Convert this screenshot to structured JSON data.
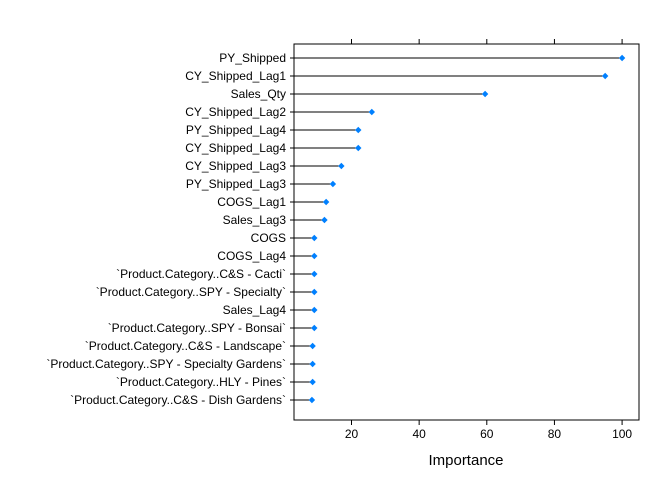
{
  "chart_data": {
    "type": "dotplot",
    "xlabel": "Importance",
    "xlim": [
      3,
      105
    ],
    "xticks": [
      20,
      40,
      60,
      80,
      100
    ],
    "grid": false,
    "marker_color": "#0080ff",
    "categories": [
      "PY_Shipped",
      "CY_Shipped_Lag1",
      "Sales_Qty",
      "CY_Shipped_Lag2",
      "PY_Shipped_Lag4",
      "CY_Shipped_Lag4",
      "CY_Shipped_Lag3",
      "PY_Shipped_Lag3",
      "COGS_Lag1",
      "Sales_Lag3",
      "COGS",
      "COGS_Lag4",
      "`Product.Category..C&S - Cacti`",
      "`Product.Category..SPY - Specialty`",
      "Sales_Lag4",
      "`Product.Category..SPY - Bonsai`",
      "`Product.Category..C&S - Landscape`",
      "`Product.Category..SPY - Specialty Gardens`",
      "`Product.Category..HLY - Pines`",
      "`Product.Category..C&S - Dish Gardens`"
    ],
    "values": [
      100,
      95,
      59.5,
      26,
      22,
      22,
      17,
      14.5,
      12.5,
      12,
      9,
      9,
      9,
      9,
      9,
      9,
      8.5,
      8.5,
      8.5,
      8.3
    ]
  }
}
